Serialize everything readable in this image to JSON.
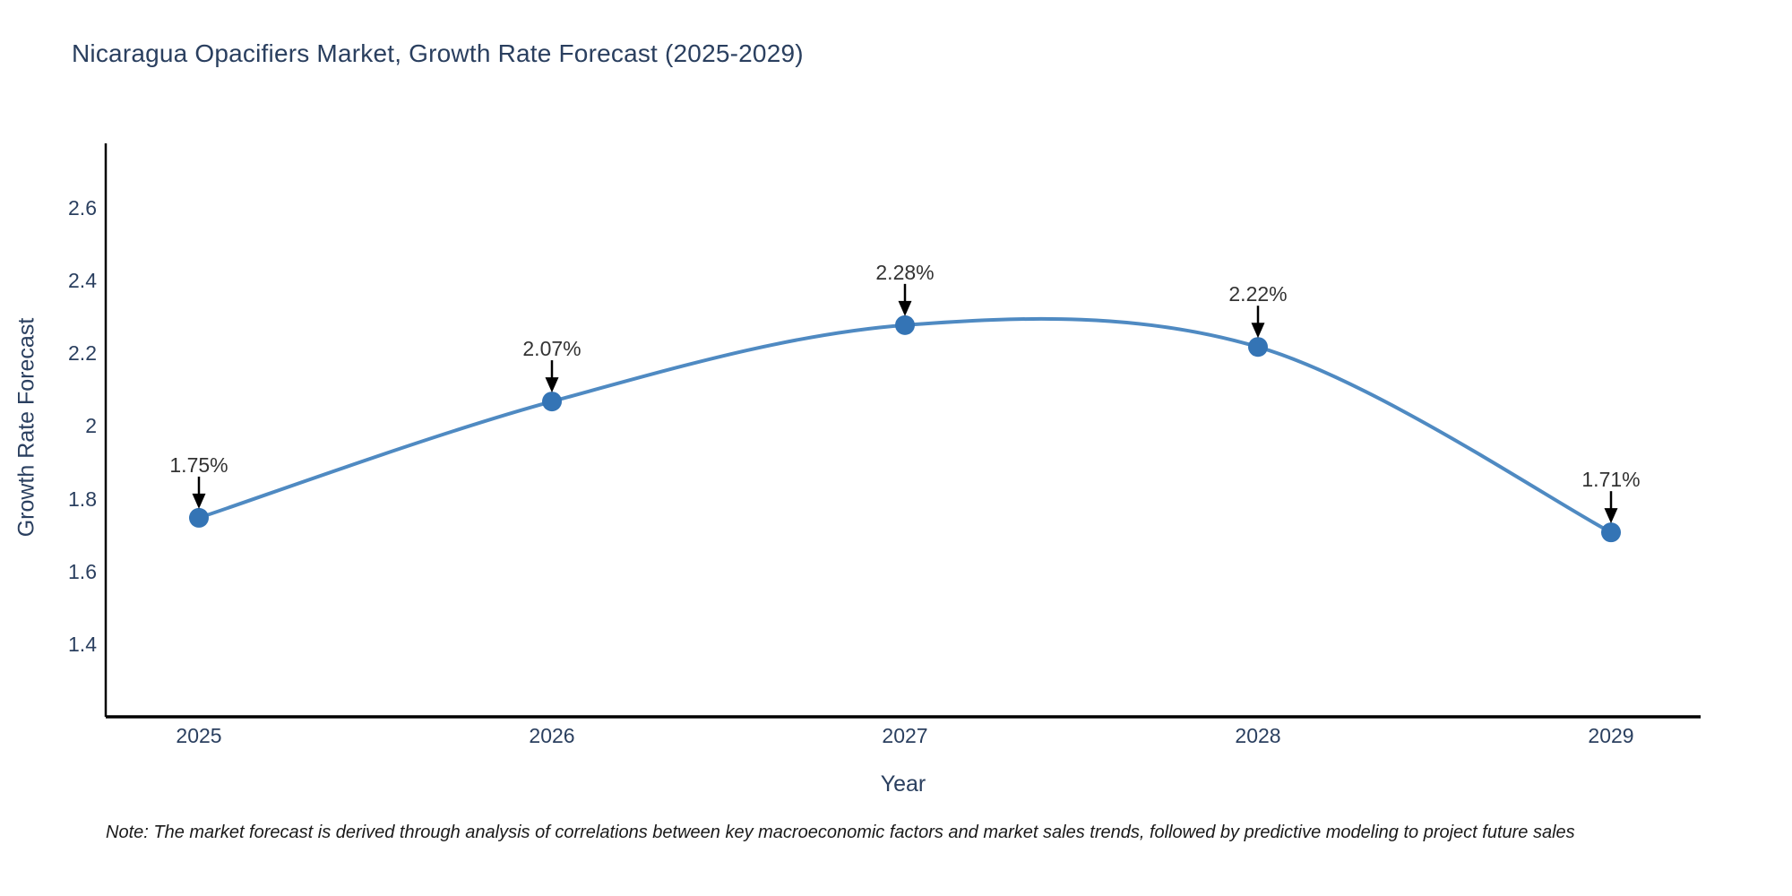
{
  "title": "Nicaragua Opacifiers Market, Growth Rate Forecast (2025-2029)",
  "note": "Note: The market forecast is derived through analysis of correlations between key macroeconomic factors and market sales trends, followed by predictive modeling to project future sales",
  "chart_data": {
    "type": "line",
    "curve": "spline",
    "title": "Nicaragua Opacifiers Market, Growth Rate Forecast (2025-2029)",
    "xlabel": "Year",
    "ylabel": "Growth Rate Forecast",
    "x": [
      2025,
      2026,
      2027,
      2028,
      2029
    ],
    "values": [
      1.75,
      2.07,
      2.28,
      2.22,
      1.71
    ],
    "point_labels": [
      "1.75%",
      "2.07%",
      "2.28%",
      "2.22%",
      "1.71%"
    ],
    "xticks": [
      "2025",
      "2026",
      "2027",
      "2028",
      "2029"
    ],
    "yticks": [
      "2.6",
      "2.4",
      "2.2",
      "2",
      "1.8",
      "1.6",
      "1.4"
    ],
    "ytick_values": [
      2.6,
      2.4,
      2.2,
      2.0,
      1.8,
      1.6,
      1.4
    ],
    "ylim": [
      1.2,
      2.78
    ],
    "xlim": [
      2024.73,
      2029.25
    ],
    "grid": false,
    "legend_position": "none",
    "line_color": "#4f8ac2",
    "marker_color": "#3474b5",
    "arrow_color": "#000000",
    "axis_color": "#000000",
    "text_color": "#2a3f5f",
    "annotation_text_color": "#333333"
  }
}
